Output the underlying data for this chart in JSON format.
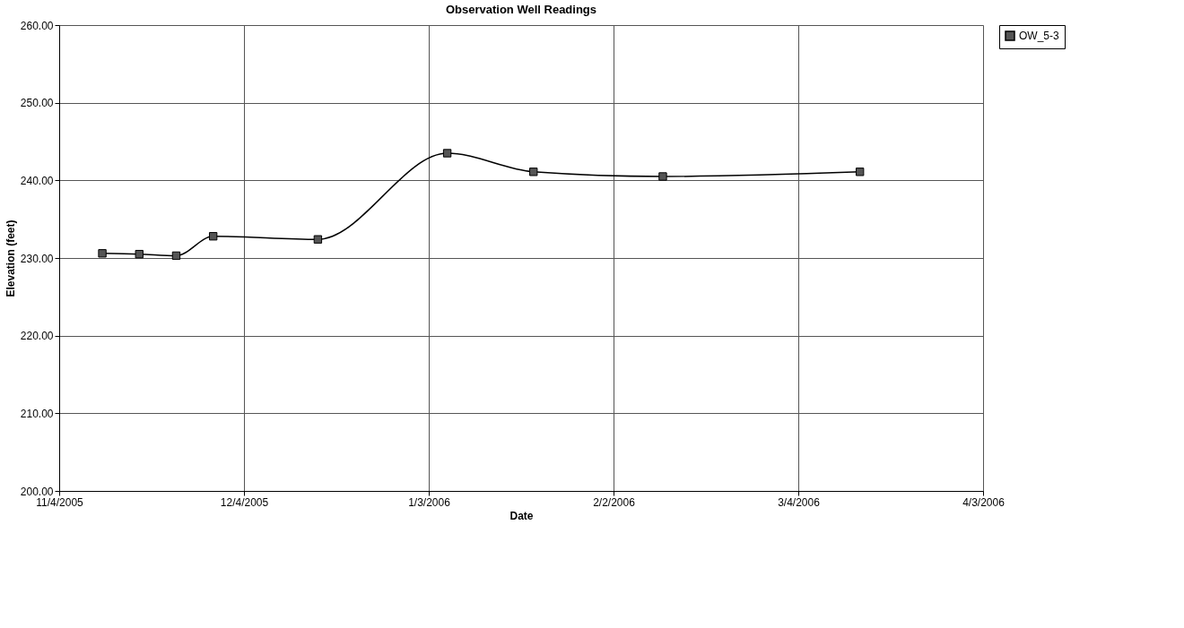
{
  "chart_data": {
    "type": "line",
    "title": "Observation Well Readings",
    "xlabel": "Date",
    "ylabel": "Elevation (feet)",
    "x": [
      "2005-11-11",
      "2005-11-17",
      "2005-11-23",
      "2005-11-29",
      "2005-12-16",
      "2006-01-06",
      "2006-01-20",
      "2006-02-10",
      "2006-03-14"
    ],
    "series": [
      {
        "name": "OW_5-3",
        "color": "#555555",
        "values": [
          230.6,
          230.5,
          230.3,
          232.8,
          232.4,
          243.5,
          241.1,
          240.5,
          241.1
        ]
      }
    ],
    "xlim": [
      "2005-11-04",
      "2006-04-03"
    ],
    "xticks": [
      {
        "value": "2005-11-04",
        "label": "11/4/2005"
      },
      {
        "value": "2005-12-04",
        "label": "12/4/2005"
      },
      {
        "value": "2006-01-03",
        "label": "1/3/2006"
      },
      {
        "value": "2006-02-02",
        "label": "2/2/2006"
      },
      {
        "value": "2006-03-04",
        "label": "3/4/2006"
      },
      {
        "value": "2006-04-03",
        "label": "4/3/2006"
      }
    ],
    "ylim": [
      200,
      260
    ],
    "yticks": [
      {
        "value": 200,
        "label": "200.00"
      },
      {
        "value": 210,
        "label": "210.00"
      },
      {
        "value": 220,
        "label": "220.00"
      },
      {
        "value": 230,
        "label": "230.00"
      },
      {
        "value": 240,
        "label": "240.00"
      },
      {
        "value": 250,
        "label": "250.00"
      },
      {
        "value": 260,
        "label": "260.00"
      }
    ],
    "grid": true,
    "legend": "right",
    "marker": "square",
    "line_style": "solid"
  }
}
